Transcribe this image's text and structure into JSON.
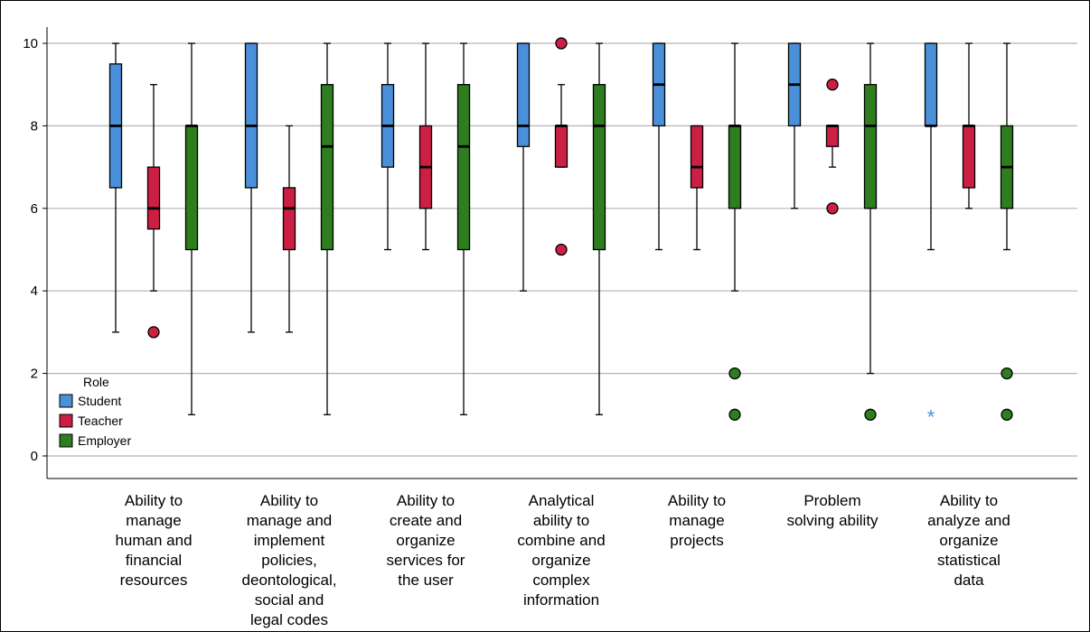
{
  "chart_data": {
    "type": "boxplot",
    "title": "",
    "xlabel": "",
    "ylabel": "",
    "ylim": [
      0,
      10
    ],
    "yticks": [
      0,
      2,
      4,
      6,
      8,
      10
    ],
    "grid": true,
    "legend": {
      "title": "Role",
      "placement": "bottom-left",
      "entries": [
        "Student",
        "Teacher",
        "Employer"
      ]
    },
    "colors": {
      "Student": "#4a90d9",
      "Teacher": "#cc1f44",
      "Employer": "#2e7d1e"
    },
    "categories": [
      "Ability to manage human and financial resources",
      "Ability to manage and implement policies, deontological, social and legal codes",
      "Ability to create and organize services for the user",
      "Analytical ability to combine and organize complex information",
      "Ability to manage projects",
      "Problem solving ability",
      "Ability to analyze and organize statistical data"
    ],
    "category_lines": [
      [
        "Ability to",
        "manage",
        "human and",
        "financial",
        "resources"
      ],
      [
        "Ability to",
        "manage and",
        "implement",
        "policies,",
        "deontological,",
        "social and",
        "legal codes"
      ],
      [
        "Ability to",
        "create and",
        "organize",
        "services for",
        "the user"
      ],
      [
        "Analytical",
        "ability to",
        "combine and",
        "organize",
        "complex",
        "information"
      ],
      [
        "Ability to",
        "manage",
        "projects"
      ],
      [
        "Problem",
        "solving ability"
      ],
      [
        "Ability to",
        "analyze and",
        "organize",
        "statistical",
        "data"
      ]
    ],
    "series": [
      {
        "name": "Student",
        "boxes": [
          {
            "min": 3,
            "q1": 6.5,
            "median": 8,
            "q3": 9.5,
            "max": 10,
            "outliers": [],
            "extremes": []
          },
          {
            "min": 3,
            "q1": 6.5,
            "median": 8,
            "q3": 10,
            "max": 10,
            "outliers": [],
            "extremes": []
          },
          {
            "min": 5,
            "q1": 7,
            "median": 8,
            "q3": 9,
            "max": 10,
            "outliers": [],
            "extremes": []
          },
          {
            "min": 4,
            "q1": 7.5,
            "median": 8,
            "q3": 10,
            "max": 10,
            "outliers": [],
            "extremes": []
          },
          {
            "min": 5,
            "q1": 8,
            "median": 9,
            "q3": 10,
            "max": 10,
            "outliers": [],
            "extremes": []
          },
          {
            "min": 6,
            "q1": 8,
            "median": 9,
            "q3": 10,
            "max": 10,
            "outliers": [],
            "extremes": []
          },
          {
            "min": 5,
            "q1": 8,
            "median": 8,
            "q3": 10,
            "max": 10,
            "outliers": [],
            "extremes": [
              1
            ]
          }
        ]
      },
      {
        "name": "Teacher",
        "boxes": [
          {
            "min": 4,
            "q1": 5.5,
            "median": 6,
            "q3": 7,
            "max": 9,
            "outliers": [
              3
            ],
            "extremes": []
          },
          {
            "min": 3,
            "q1": 5,
            "median": 6,
            "q3": 6.5,
            "max": 8,
            "outliers": [],
            "extremes": []
          },
          {
            "min": 5,
            "q1": 6,
            "median": 7,
            "q3": 8,
            "max": 10,
            "outliers": [],
            "extremes": []
          },
          {
            "min": 7,
            "q1": 7,
            "median": 8,
            "q3": 8,
            "max": 9,
            "outliers": [
              10,
              5
            ],
            "extremes": []
          },
          {
            "min": 5,
            "q1": 6.5,
            "median": 7,
            "q3": 8,
            "max": 8,
            "outliers": [],
            "extremes": []
          },
          {
            "min": 7,
            "q1": 7.5,
            "median": 8,
            "q3": 8,
            "max": 8,
            "outliers": [
              9,
              6
            ],
            "extremes": []
          },
          {
            "min": 6,
            "q1": 6.5,
            "median": 8,
            "q3": 8,
            "max": 10,
            "outliers": [],
            "extremes": []
          }
        ]
      },
      {
        "name": "Employer",
        "boxes": [
          {
            "min": 1,
            "q1": 5,
            "median": 8,
            "q3": 8,
            "max": 10,
            "outliers": [],
            "extremes": []
          },
          {
            "min": 1,
            "q1": 5,
            "median": 7.5,
            "q3": 9,
            "max": 10,
            "outliers": [],
            "extremes": []
          },
          {
            "min": 1,
            "q1": 5,
            "median": 7.5,
            "q3": 9,
            "max": 10,
            "outliers": [],
            "extremes": []
          },
          {
            "min": 1,
            "q1": 5,
            "median": 8,
            "q3": 9,
            "max": 10,
            "outliers": [],
            "extremes": []
          },
          {
            "min": 4,
            "q1": 6,
            "median": 8,
            "q3": 8,
            "max": 10,
            "outliers": [
              2,
              1
            ],
            "extremes": []
          },
          {
            "min": 2,
            "q1": 6,
            "median": 8,
            "q3": 9,
            "max": 10,
            "outliers": [
              1
            ],
            "extremes": []
          },
          {
            "min": 5,
            "q1": 6,
            "median": 7,
            "q3": 8,
            "max": 10,
            "outliers": [
              2,
              1
            ],
            "extremes": []
          }
        ]
      }
    ]
  }
}
